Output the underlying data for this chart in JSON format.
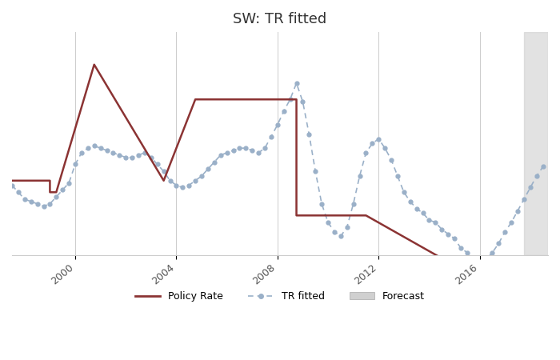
{
  "title": "SW: TR fitted",
  "title_fontsize": 13,
  "background_color": "#ffffff",
  "grid_color": "#cccccc",
  "policy_rate_color": "#8B3333",
  "tr_fitted_color": "#9ab0c8",
  "forecast_color": "#d0d0d0",
  "xlim": [
    1997.5,
    2018.7
  ],
  "ylim": [
    -0.6,
    4.2
  ],
  "xtick_years": [
    2000,
    2004,
    2008,
    2012,
    2016
  ],
  "policy_rate": {
    "x": [
      1997.5,
      1999.0,
      1999.0,
      1999.25,
      1999.25,
      2000.75,
      2000.75,
      2003.5,
      2003.5,
      2004.75,
      2004.75,
      2008.75,
      2008.75,
      2009.25,
      2009.25,
      2011.5,
      2011.5,
      2014.75,
      2014.75,
      2018.7
    ],
    "y": [
      1.0,
      1.0,
      0.75,
      0.75,
      0.75,
      3.5,
      3.5,
      1.0,
      1.0,
      2.75,
      2.75,
      2.75,
      0.25,
      0.25,
      0.25,
      0.25,
      0.25,
      -0.75,
      -0.75,
      -0.75
    ]
  },
  "tr_fitted": {
    "x": [
      1997.5,
      1997.75,
      1998.0,
      1998.25,
      1998.5,
      1998.75,
      1999.0,
      1999.25,
      1999.5,
      1999.75,
      2000.0,
      2000.25,
      2000.5,
      2000.75,
      2001.0,
      2001.25,
      2001.5,
      2001.75,
      2002.0,
      2002.25,
      2002.5,
      2002.75,
      2003.0,
      2003.25,
      2003.5,
      2003.75,
      2004.0,
      2004.25,
      2004.5,
      2004.75,
      2005.0,
      2005.25,
      2005.5,
      2005.75,
      2006.0,
      2006.25,
      2006.5,
      2006.75,
      2007.0,
      2007.25,
      2007.5,
      2007.75,
      2008.0,
      2008.25,
      2008.5,
      2008.75,
      2009.0,
      2009.25,
      2009.5,
      2009.75,
      2010.0,
      2010.25,
      2010.5,
      2010.75,
      2011.0,
      2011.25,
      2011.5,
      2011.75,
      2012.0,
      2012.25,
      2012.5,
      2012.75,
      2013.0,
      2013.25,
      2013.5,
      2013.75,
      2014.0,
      2014.25,
      2014.5,
      2014.75,
      2015.0,
      2015.25,
      2015.5,
      2015.75,
      2016.0,
      2016.25,
      2016.5,
      2016.75,
      2017.0,
      2017.25,
      2017.5,
      2017.75,
      2018.0,
      2018.25,
      2018.5
    ],
    "y": [
      0.9,
      0.75,
      0.6,
      0.55,
      0.5,
      0.45,
      0.5,
      0.65,
      0.8,
      0.95,
      1.35,
      1.6,
      1.7,
      1.75,
      1.7,
      1.65,
      1.6,
      1.55,
      1.5,
      1.5,
      1.55,
      1.6,
      1.5,
      1.35,
      1.2,
      1.0,
      0.9,
      0.85,
      0.9,
      1.0,
      1.1,
      1.25,
      1.4,
      1.55,
      1.6,
      1.65,
      1.7,
      1.7,
      1.65,
      1.6,
      1.7,
      1.95,
      2.2,
      2.5,
      2.75,
      3.1,
      2.7,
      2.0,
      1.2,
      0.5,
      0.1,
      -0.1,
      -0.2,
      0.0,
      0.5,
      1.1,
      1.6,
      1.8,
      1.9,
      1.7,
      1.45,
      1.1,
      0.75,
      0.55,
      0.4,
      0.3,
      0.15,
      0.1,
      -0.05,
      -0.15,
      -0.25,
      -0.45,
      -0.55,
      -0.65,
      -0.75,
      -0.7,
      -0.55,
      -0.35,
      -0.1,
      0.1,
      0.35,
      0.6,
      0.85,
      1.1,
      1.3
    ]
  },
  "forecast_x_start": 2017.75,
  "forecast_x_end": 2018.7
}
